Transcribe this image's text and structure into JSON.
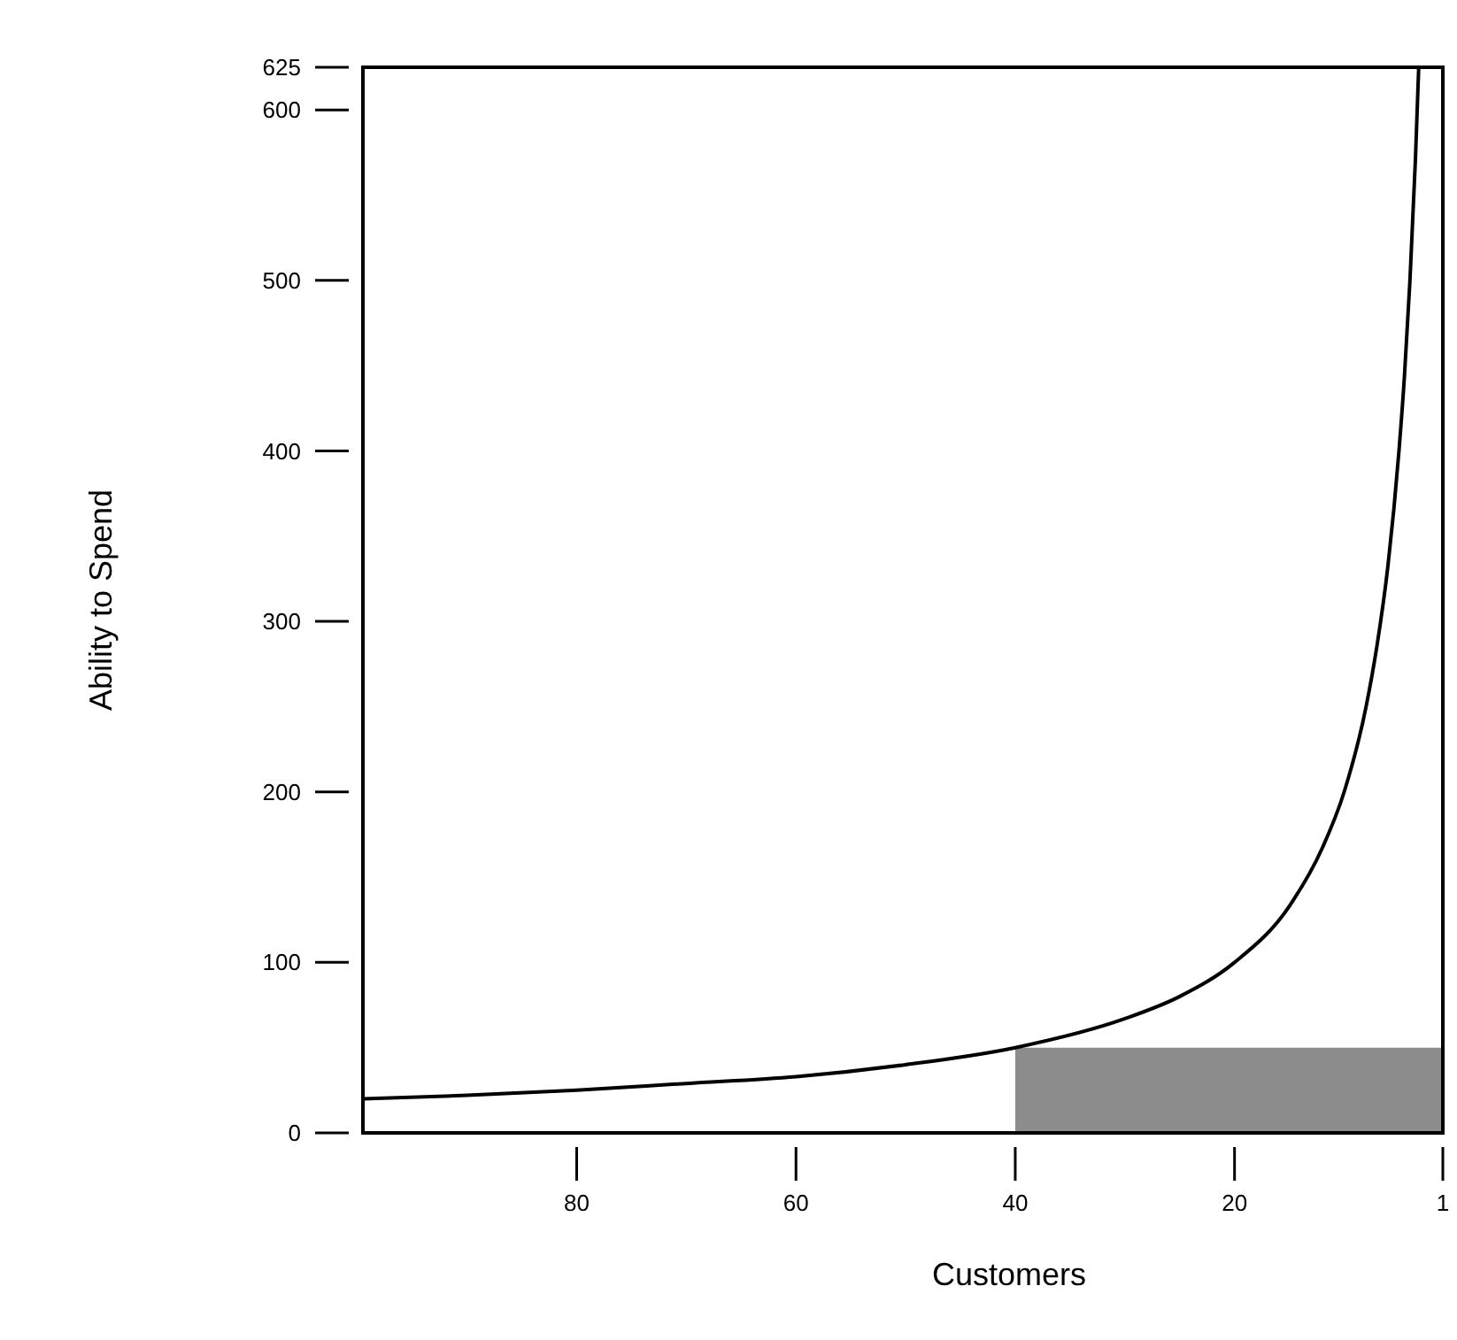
{
  "chart_data": {
    "type": "line",
    "xlabel": "Customers",
    "ylabel": "Ability to Spend",
    "xlim": [
      99.5,
      1
    ],
    "xticks": [
      80,
      60,
      40,
      20,
      1
    ],
    "ylim": [
      0,
      625
    ],
    "yticks": [
      0,
      100,
      200,
      300,
      400,
      500,
      600,
      625
    ],
    "grid": false,
    "series": [
      {
        "type": "area",
        "color": "#8c8c8c",
        "x": [
          40,
          1
        ],
        "values": [
          50,
          50
        ]
      },
      {
        "color": "#000000",
        "x": [
          99.5,
          90,
          80,
          70,
          60,
          50,
          40,
          30,
          25,
          20,
          15,
          12,
          10,
          8,
          7,
          6,
          5,
          4.5,
          4,
          3.5,
          3.2
        ],
        "values": [
          20,
          22,
          25,
          29,
          33,
          40,
          50,
          67,
          80,
          100,
          133,
          167,
          200,
          250,
          286,
          333,
          400,
          444,
          500,
          571,
          625
        ]
      }
    ]
  }
}
